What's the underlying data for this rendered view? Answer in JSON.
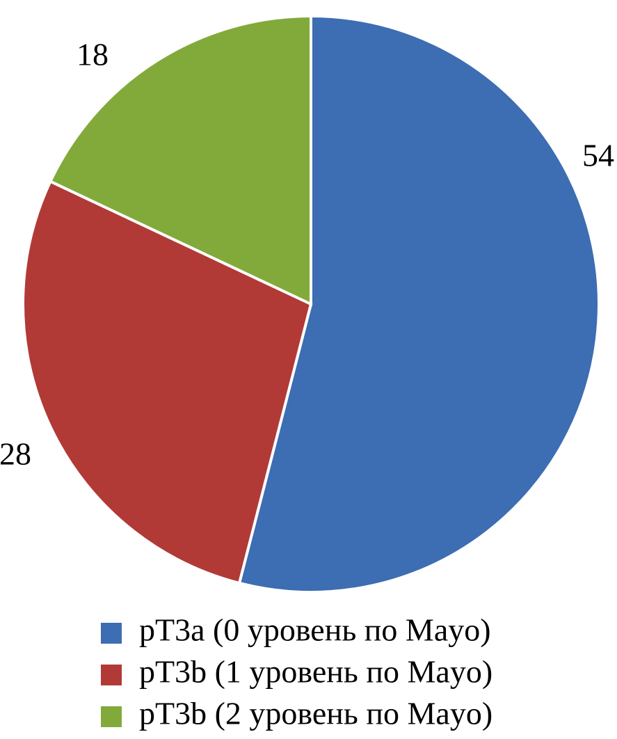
{
  "chart_data": {
    "type": "pie",
    "categories": [
      "pT3a (0 уровень по Mayo)",
      "pT3b (1 уровень по Mayo)",
      "pT3b (2 уровень по Mayo)"
    ],
    "values": [
      54,
      28,
      18
    ],
    "colors": [
      "#3d6db2",
      "#b13a36",
      "#82aa3b"
    ]
  }
}
